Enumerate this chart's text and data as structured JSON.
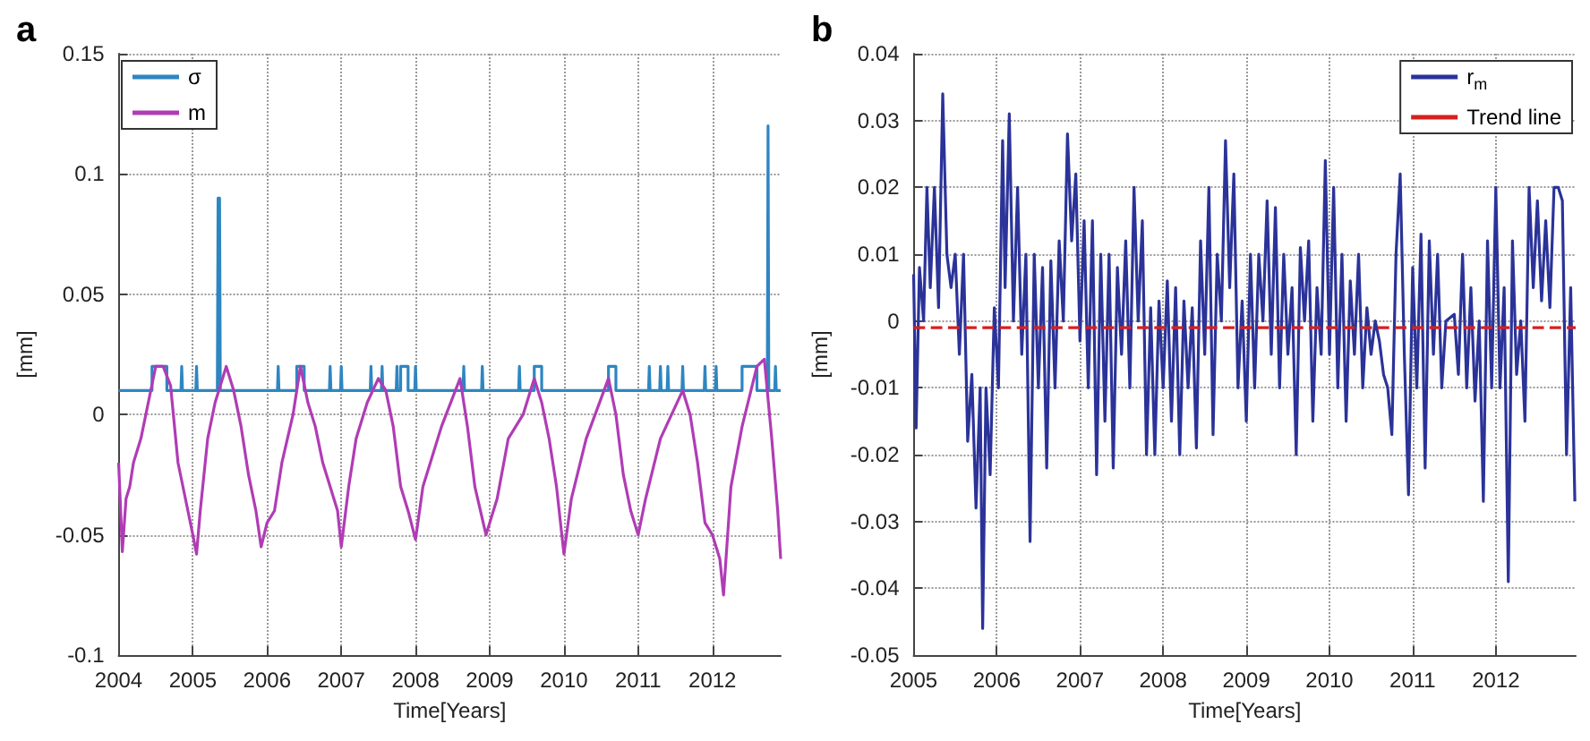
{
  "chart_data": [
    {
      "type": "line",
      "title": "a",
      "xlabel": "Time[Years]",
      "ylabel": "[mm]",
      "xlim": [
        2004,
        2012.92
      ],
      "xticks": [
        2004,
        2005,
        2006,
        2007,
        2008,
        2009,
        2010,
        2011,
        2012
      ],
      "ylim": [
        -0.1,
        0.15
      ],
      "yticks": [
        -0.1,
        -0.05,
        0,
        0.05,
        0.1,
        0.15
      ],
      "grid": true,
      "legend": "top left",
      "marker": "none",
      "line_style": "solid",
      "series": [
        {
          "name": "σ",
          "color": "#2e86c1",
          "x": [
            2004,
            2004.45,
            2004.45,
            2004.65,
            2004.65,
            2004.84,
            2004.85,
            2004.86,
            2005.04,
            2005.05,
            2005.06,
            2005.33,
            2005.34,
            2005.36,
            2005.37,
            2006.14,
            2006.15,
            2006.16,
            2006.4,
            2006.4,
            2006.5,
            2006.5,
            2006.84,
            2006.85,
            2006.86,
            2006.99,
            2007.0,
            2007.01,
            2007.39,
            2007.4,
            2007.41,
            2007.54,
            2007.55,
            2007.56,
            2007.74,
            2007.75,
            2007.76,
            2007.8,
            2007.8,
            2007.9,
            2007.9,
            2007.99,
            2008.0,
            2008.01,
            2008.64,
            2008.65,
            2008.66,
            2008.89,
            2008.9,
            2008.91,
            2009.39,
            2009.4,
            2009.41,
            2009.6,
            2009.6,
            2009.7,
            2009.7,
            2010.6,
            2010.6,
            2010.7,
            2010.7,
            2011.14,
            2011.15,
            2011.16,
            2011.29,
            2011.3,
            2011.31,
            2011.39,
            2011.4,
            2011.41,
            2011.59,
            2011.6,
            2011.61,
            2011.89,
            2011.9,
            2011.91,
            2012.04,
            2012.05,
            2012.06,
            2012.4,
            2012.4,
            2012.6,
            2012.6,
            2012.74,
            2012.75,
            2012.76,
            2012.84,
            2012.85,
            2012.86,
            2012.92
          ],
          "values": [
            0.01,
            0.01,
            0.02,
            0.02,
            0.01,
            0.01,
            0.02,
            0.01,
            0.01,
            0.02,
            0.01,
            0.01,
            0.09,
            0.09,
            0.01,
            0.01,
            0.02,
            0.01,
            0.01,
            0.02,
            0.02,
            0.01,
            0.01,
            0.02,
            0.01,
            0.01,
            0.02,
            0.01,
            0.01,
            0.02,
            0.01,
            0.01,
            0.02,
            0.01,
            0.01,
            0.02,
            0.01,
            0.01,
            0.02,
            0.02,
            0.01,
            0.01,
            0.02,
            0.01,
            0.01,
            0.02,
            0.01,
            0.01,
            0.02,
            0.01,
            0.01,
            0.02,
            0.01,
            0.01,
            0.02,
            0.02,
            0.01,
            0.01,
            0.02,
            0.02,
            0.01,
            0.01,
            0.02,
            0.01,
            0.01,
            0.02,
            0.01,
            0.01,
            0.02,
            0.01,
            0.01,
            0.02,
            0.01,
            0.01,
            0.02,
            0.01,
            0.01,
            0.02,
            0.01,
            0.01,
            0.02,
            0.02,
            0.01,
            0.01,
            0.12,
            0.01,
            0.01,
            0.02,
            0.01,
            0.01
          ]
        },
        {
          "name": "m",
          "color": "#b03cb5",
          "x": [
            2004,
            2004.05,
            2004.1,
            2004.15,
            2004.2,
            2004.3,
            2004.4,
            2004.5,
            2004.6,
            2004.7,
            2004.8,
            2004.9,
            2005.0,
            2005.05,
            2005.1,
            2005.2,
            2005.3,
            2005.45,
            2005.55,
            2005.65,
            2005.75,
            2005.85,
            2005.92,
            2006.0,
            2006.1,
            2006.2,
            2006.35,
            2006.45,
            2006.55,
            2006.65,
            2006.75,
            2006.85,
            2006.95,
            2007.0,
            2007.1,
            2007.2,
            2007.35,
            2007.5,
            2007.6,
            2007.7,
            2007.8,
            2007.9,
            2008.0,
            2008.1,
            2008.2,
            2008.35,
            2008.6,
            2008.7,
            2008.8,
            2008.95,
            2009.1,
            2009.25,
            2009.45,
            2009.6,
            2009.7,
            2009.8,
            2009.9,
            2010.0,
            2010.1,
            2010.3,
            2010.6,
            2010.7,
            2010.8,
            2010.9,
            2011.0,
            2011.1,
            2011.3,
            2011.6,
            2011.7,
            2011.8,
            2011.9,
            2012.0,
            2012.1,
            2012.15,
            2012.25,
            2012.4,
            2012.6,
            2012.7,
            2012.8,
            2012.88,
            2012.92
          ],
          "values": [
            -0.02,
            -0.057,
            -0.035,
            -0.03,
            -0.02,
            -0.01,
            0.005,
            0.02,
            0.02,
            0.012,
            -0.02,
            -0.035,
            -0.05,
            -0.058,
            -0.04,
            -0.01,
            0.005,
            0.02,
            0.01,
            -0.005,
            -0.025,
            -0.04,
            -0.055,
            -0.045,
            -0.04,
            -0.02,
            0.0,
            0.02,
            0.005,
            -0.005,
            -0.02,
            -0.03,
            -0.04,
            -0.055,
            -0.03,
            -0.01,
            0.005,
            0.015,
            0.01,
            -0.005,
            -0.03,
            -0.04,
            -0.052,
            -0.03,
            -0.02,
            -0.005,
            0.015,
            -0.005,
            -0.03,
            -0.05,
            -0.035,
            -0.01,
            0.0,
            0.015,
            0.005,
            -0.01,
            -0.03,
            -0.058,
            -0.035,
            -0.01,
            0.015,
            0.0,
            -0.025,
            -0.04,
            -0.05,
            -0.035,
            -0.01,
            0.01,
            0.0,
            -0.02,
            -0.045,
            -0.05,
            -0.06,
            -0.075,
            -0.03,
            -0.005,
            0.02,
            0.023,
            -0.01,
            -0.04,
            -0.06
          ]
        }
      ]
    },
    {
      "type": "line",
      "title": "b",
      "xlabel": "Time[Years]",
      "ylabel": "[mm]",
      "xlim": [
        2005,
        2012.96
      ],
      "xticks": [
        2005,
        2006,
        2007,
        2008,
        2009,
        2010,
        2011,
        2012
      ],
      "ylim": [
        -0.05,
        0.04
      ],
      "yticks": [
        -0.05,
        -0.04,
        -0.03,
        -0.02,
        -0.01,
        0,
        0.01,
        0.02,
        0.03,
        0.04
      ],
      "grid": true,
      "legend": "top right",
      "marker": "none",
      "series": [
        {
          "name": "r$_{m}$",
          "color": "#2b3399",
          "line_style": "solid",
          "x": [
            2005.0,
            2005.03,
            2005.07,
            2005.12,
            2005.16,
            2005.2,
            2005.25,
            2005.3,
            2005.35,
            2005.4,
            2005.45,
            2005.5,
            2005.55,
            2005.6,
            2005.65,
            2005.7,
            2005.75,
            2005.8,
            2005.83,
            2005.87,
            2005.92,
            2005.97,
            2006.02,
            2006.07,
            2006.1,
            2006.15,
            2006.2,
            2006.25,
            2006.3,
            2006.35,
            2006.4,
            2006.45,
            2006.5,
            2006.55,
            2006.6,
            2006.65,
            2006.7,
            2006.75,
            2006.8,
            2006.85,
            2006.9,
            2006.95,
            2007.0,
            2007.05,
            2007.1,
            2007.15,
            2007.2,
            2007.25,
            2007.3,
            2007.35,
            2007.4,
            2007.45,
            2007.5,
            2007.55,
            2007.6,
            2007.65,
            2007.7,
            2007.75,
            2007.8,
            2007.85,
            2007.9,
            2007.95,
            2008.0,
            2008.05,
            2008.1,
            2008.15,
            2008.2,
            2008.25,
            2008.3,
            2008.35,
            2008.4,
            2008.45,
            2008.5,
            2008.55,
            2008.6,
            2008.65,
            2008.7,
            2008.75,
            2008.8,
            2008.85,
            2008.9,
            2008.95,
            2009.0,
            2009.05,
            2009.1,
            2009.15,
            2009.2,
            2009.25,
            2009.3,
            2009.35,
            2009.4,
            2009.45,
            2009.5,
            2009.55,
            2009.6,
            2009.65,
            2009.7,
            2009.75,
            2009.8,
            2009.85,
            2009.9,
            2009.95,
            2010.0,
            2010.05,
            2010.1,
            2010.15,
            2010.2,
            2010.25,
            2010.3,
            2010.35,
            2010.4,
            2010.45,
            2010.5,
            2010.55,
            2010.6,
            2010.65,
            2010.7,
            2010.75,
            2010.8,
            2010.85,
            2010.9,
            2010.95,
            2011.0,
            2011.05,
            2011.1,
            2011.15,
            2011.2,
            2011.25,
            2011.3,
            2011.35,
            2011.4,
            2011.5,
            2011.55,
            2011.6,
            2011.65,
            2011.7,
            2011.75,
            2011.8,
            2011.85,
            2011.9,
            2011.95,
            2012.0,
            2012.05,
            2012.1,
            2012.15,
            2012.2,
            2012.25,
            2012.3,
            2012.35,
            2012.4,
            2012.45,
            2012.5,
            2012.55,
            2012.6,
            2012.65,
            2012.7,
            2012.75,
            2012.8,
            2012.85,
            2012.9,
            2012.95
          ],
          "values": [
            0.007,
            -0.016,
            0.008,
            0.0,
            0.02,
            0.005,
            0.02,
            0.002,
            0.034,
            0.01,
            0.005,
            0.01,
            -0.005,
            0.01,
            -0.018,
            -0.008,
            -0.028,
            -0.01,
            -0.046,
            -0.01,
            -0.023,
            0.002,
            -0.01,
            0.027,
            0.005,
            0.031,
            0.0,
            0.02,
            -0.005,
            0.01,
            -0.033,
            0.01,
            -0.01,
            0.008,
            -0.022,
            0.009,
            -0.01,
            0.012,
            0.0,
            0.028,
            0.012,
            0.022,
            -0.003,
            0.015,
            -0.01,
            0.015,
            -0.023,
            0.01,
            -0.015,
            0.01,
            -0.022,
            0.008,
            -0.005,
            0.012,
            -0.01,
            0.02,
            0.0,
            0.015,
            -0.02,
            0.002,
            -0.02,
            0.003,
            -0.01,
            0.006,
            -0.015,
            0.005,
            -0.02,
            0.003,
            -0.01,
            0.002,
            -0.019,
            0.012,
            -0.005,
            0.02,
            -0.017,
            0.01,
            0.0,
            0.027,
            0.005,
            0.022,
            -0.01,
            0.003,
            -0.015,
            0.01,
            -0.01,
            0.01,
            0.0,
            0.018,
            -0.005,
            0.017,
            -0.01,
            0.01,
            -0.005,
            0.005,
            -0.02,
            0.011,
            0.0,
            0.012,
            -0.015,
            0.005,
            -0.005,
            0.024,
            -0.005,
            0.02,
            -0.01,
            0.01,
            -0.015,
            0.006,
            -0.005,
            0.01,
            -0.01,
            0.002,
            -0.005,
            0.0,
            -0.003,
            -0.008,
            -0.01,
            -0.017,
            0.01,
            0.022,
            -0.005,
            -0.026,
            0.008,
            -0.01,
            0.013,
            -0.022,
            0.012,
            -0.005,
            0.01,
            -0.01,
            0.0,
            0.001,
            -0.008,
            0.01,
            -0.01,
            0.005,
            -0.012,
            0.0,
            -0.027,
            0.012,
            -0.01,
            0.02,
            -0.01,
            0.005,
            -0.039,
            0.012,
            -0.008,
            0.0,
            -0.015,
            0.02,
            0.005,
            0.018,
            0.003,
            0.015,
            0.002,
            0.02,
            0.02,
            0.018,
            -0.02,
            0.005,
            -0.027
          ]
        },
        {
          "name": "Trend line",
          "color": "#d62020",
          "line_style": "dashed",
          "x": [
            2005,
            2012.96
          ],
          "values": [
            -0.001,
            -0.001
          ]
        }
      ]
    }
  ]
}
